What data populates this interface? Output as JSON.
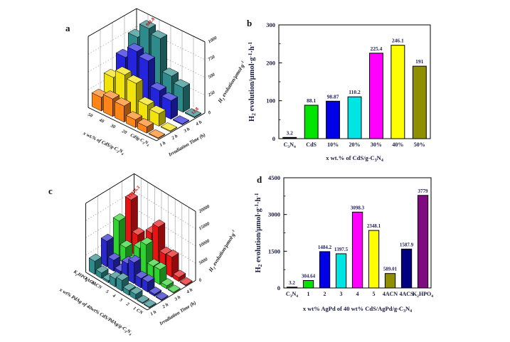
{
  "figure": {
    "background": "#FFFFFF"
  },
  "chart_data": [
    {
      "panel_label": "a",
      "type": "bar3d",
      "category_axis": {
        "label": "x wt.% of CdS/g-C_3N_4",
        "categories_far_to_near": [
          "50",
          "40",
          "30",
          "20",
          "CdS",
          "g-C_3N_4"
        ]
      },
      "time_axis": {
        "label": "Irradiation Time (h)",
        "categories": [
          "1 h",
          "2 h",
          "3 h",
          "4 h"
        ]
      },
      "z_axis": {
        "label": "H_2 evolution/μmol·g^{-1}",
        "ticks": [
          0,
          250,
          500,
          750,
          1000
        ],
        "max": 1000
      },
      "series": [
        {
          "name": "1 h",
          "color": "#FF8519",
          "values": [
            191,
            246.1,
            225.4,
            110.2,
            88.1,
            3.2
          ]
        },
        {
          "name": "2 h",
          "color": "#F2E30A",
          "values": [
            372,
            486,
            445,
            216,
            174,
            6.4
          ]
        },
        {
          "name": "3 h",
          "color": "#2424DC",
          "values": [
            556,
            718,
            662,
            322,
            260,
            9.6
          ]
        },
        {
          "name": "4 h",
          "color": "#2E8B8B",
          "values": [
            741,
            941.8,
            878,
            428,
            346,
            12.8
          ]
        }
      ],
      "annotations": [
        {
          "text": "941.8",
          "series_index": 3,
          "category_index": 1,
          "color": "#CC0000"
        },
        {
          "text": "12.8",
          "series_index": 3,
          "category_index": 5,
          "color": "#CC0000"
        }
      ]
    },
    {
      "panel_label": "b",
      "type": "bar",
      "x_axis": {
        "label": "x wt.% of CdS/g-C_3N_4",
        "categories": [
          "C_3N_4",
          "CdS",
          "10%",
          "20%",
          "30%",
          "40%",
          "50%"
        ]
      },
      "y_axis": {
        "label": "H_2 evolution/μmol·g^{-1}·h^{-1}",
        "ticks": [
          0,
          100,
          200,
          300
        ],
        "max": 300,
        "minor_ticks": [
          50,
          150,
          250
        ]
      },
      "values": [
        3.2,
        88.1,
        98.87,
        110.2,
        225.4,
        246.1,
        191
      ],
      "value_labels": [
        "3.2",
        "88.1",
        "98.87",
        "110.2",
        "225.4",
        "246.1",
        "191"
      ],
      "bar_colors": [
        "#000000",
        "#00E400",
        "#0000E8",
        "#00E4E4",
        "#FF00FF",
        "#FFFF00",
        "#8F8F00"
      ],
      "value_label_color": "#22225E"
    },
    {
      "panel_label": "c",
      "type": "bar3d",
      "category_axis": {
        "label": "x wt% PdAg of 40wt% CdS/PdAg/g-C_3N_4",
        "categories_far_to_near": [
          "K_2HPO_4",
          "4ACS",
          "4ACN",
          "5",
          "4",
          "3",
          "2",
          "1",
          "CN"
        ]
      },
      "time_axis": {
        "label": "Irradiation Time (h)",
        "categories": [
          "1 h",
          "2 h",
          "3 h",
          "4 h"
        ]
      },
      "z_axis": {
        "label": "H_2 evolution/μmol·g^{-1}",
        "ticks": [
          0,
          5000,
          10000,
          15000,
          20000
        ],
        "max": 20000
      },
      "series": [
        {
          "name": "1 h",
          "color": "#2E8B8B",
          "values": [
            3779,
            1587.9,
            589.01,
            2348.1,
            3098.3,
            1397.5,
            1484.2,
            304.64,
            3.2
          ]
        },
        {
          "name": "2 h",
          "color": "#2828CC",
          "values": [
            7420,
            3130,
            1165,
            4620,
            6100,
            2750,
            2920,
            602,
            6.4
          ]
        },
        {
          "name": "3 h",
          "color": "#2ED32E",
          "values": [
            11150,
            4660,
            1735,
            6920,
            9130,
            4120,
            4370,
            896,
            9.6
          ]
        },
        {
          "name": "4 h",
          "color": "#E81414",
          "values": [
            15116.3,
            6180,
            2300,
            9180,
            12130,
            5470,
            5800,
            1188,
            12.8
          ]
        }
      ],
      "annotations": [
        {
          "text": "15116.3",
          "series_index": 3,
          "category_index": 0,
          "color": "#CC0000"
        }
      ]
    },
    {
      "panel_label": "d",
      "type": "bar",
      "x_axis": {
        "label": "x wt% AgPd of 40 wt% CdS/AgPd/g-C_3N_4",
        "categories": [
          "C_3N_4",
          "1",
          "2",
          "3",
          "4",
          "5",
          "4ACN",
          "4ACS",
          "K_2HPO_4"
        ]
      },
      "y_axis": {
        "label": "H_2 evolution/μmol·g^{-1}·h^{-1}",
        "ticks": [
          0,
          1500,
          3000,
          4500
        ],
        "max": 4500,
        "minor_ticks": [
          750,
          2250,
          3750
        ]
      },
      "values": [
        3.2,
        304.64,
        1484.2,
        1397.5,
        3098.3,
        2348.1,
        589.01,
        1587.9,
        3779
      ],
      "value_labels": [
        "3.2",
        "304.64",
        "1484.2",
        "1397.5",
        "3098.3",
        "2348.1",
        "589.01",
        "1587.9",
        "3779"
      ],
      "bar_colors": [
        "#000000",
        "#00E400",
        "#0000E8",
        "#00E4E4",
        "#FF00FF",
        "#FFFF00",
        "#8F8F00",
        "#000080",
        "#800A80"
      ],
      "value_label_color": "#22225E"
    }
  ]
}
